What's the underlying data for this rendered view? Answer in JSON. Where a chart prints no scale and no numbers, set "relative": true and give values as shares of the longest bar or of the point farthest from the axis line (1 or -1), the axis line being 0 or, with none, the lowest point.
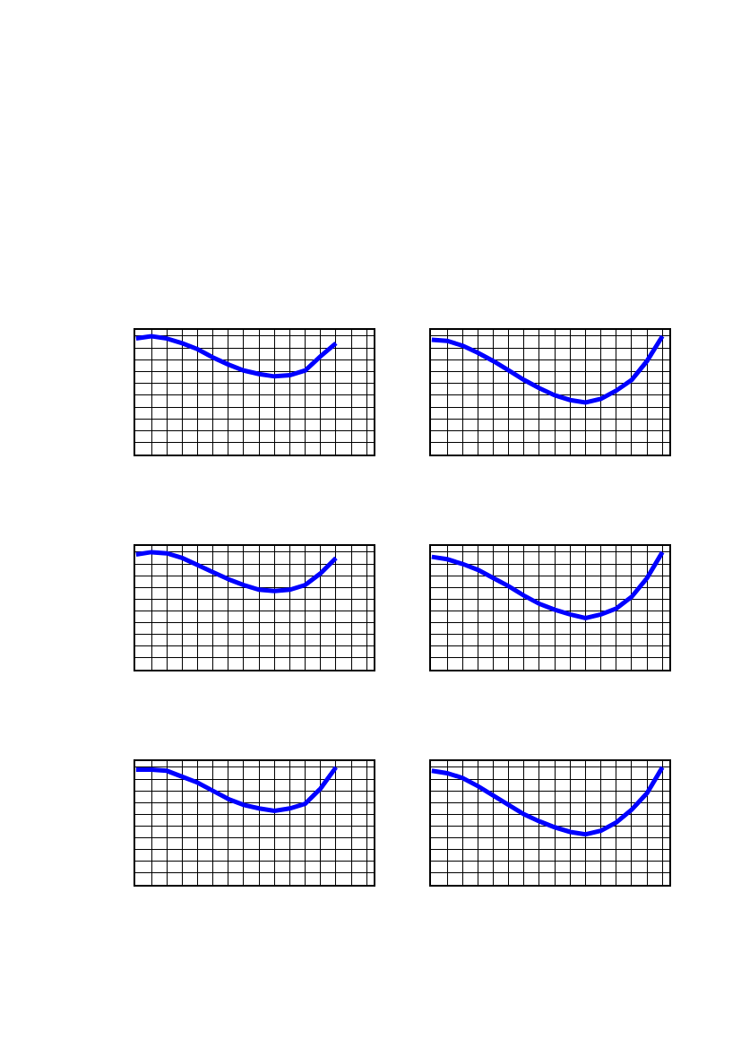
{
  "chart_data": [
    {
      "type": "line",
      "relative": true,
      "grid": true,
      "tick_labels": false,
      "legend": false,
      "marker": "none",
      "line_style": "solid",
      "categories": [
        null,
        null,
        null,
        null,
        null,
        null,
        null,
        null,
        null,
        null,
        null,
        null,
        null,
        null,
        null,
        null
      ],
      "series": [
        {
          "color": "#0000ff",
          "values": [
            0.98,
            1,
            0.98,
            0.94,
            0.89,
            0.82,
            0.76,
            0.71,
            0.68,
            0.66,
            0.67,
            0.71,
            0.83,
            0.94,
            null,
            null
          ]
        }
      ]
    },
    {
      "type": "line",
      "relative": true,
      "grid": true,
      "tick_labels": false,
      "legend": false,
      "marker": "none",
      "line_style": "solid",
      "categories": [
        null,
        null,
        null,
        null,
        null,
        null,
        null,
        null,
        null,
        null,
        null,
        null,
        null,
        null,
        null,
        null
      ],
      "series": [
        {
          "color": "#0000ff",
          "values": [
            0.97,
            0.96,
            0.92,
            0.86,
            0.79,
            0.71,
            0.63,
            0.56,
            0.5,
            0.46,
            0.44,
            0.47,
            0.54,
            0.63,
            0.79,
            1
          ]
        }
      ]
    },
    {
      "type": "line",
      "relative": true,
      "grid": true,
      "tick_labels": false,
      "legend": false,
      "marker": "none",
      "line_style": "solid",
      "categories": [
        null,
        null,
        null,
        null,
        null,
        null,
        null,
        null,
        null,
        null,
        null,
        null,
        null,
        null,
        null,
        null
      ],
      "series": [
        {
          "color": "#0000ff",
          "values": [
            0.98,
            1,
            0.99,
            0.95,
            0.89,
            0.83,
            0.77,
            0.72,
            0.68,
            0.67,
            0.68,
            0.72,
            0.82,
            0.95,
            null,
            null
          ]
        }
      ]
    },
    {
      "type": "line",
      "relative": true,
      "grid": true,
      "tick_labels": false,
      "legend": false,
      "marker": "none",
      "line_style": "solid",
      "categories": [
        null,
        null,
        null,
        null,
        null,
        null,
        null,
        null,
        null,
        null,
        null,
        null,
        null,
        null,
        null,
        null
      ],
      "series": [
        {
          "color": "#0000ff",
          "values": [
            0.96,
            0.94,
            0.9,
            0.85,
            0.78,
            0.71,
            0.63,
            0.56,
            0.51,
            0.47,
            0.44,
            0.47,
            0.52,
            0.62,
            0.78,
            1
          ]
        }
      ]
    },
    {
      "type": "line",
      "relative": true,
      "grid": true,
      "tick_labels": false,
      "legend": false,
      "marker": "none",
      "line_style": "solid",
      "categories": [
        null,
        null,
        null,
        null,
        null,
        null,
        null,
        null,
        null,
        null,
        null,
        null,
        null,
        null,
        null,
        null
      ],
      "series": [
        {
          "color": "#0000ff",
          "values": [
            0.98,
            0.98,
            0.97,
            0.92,
            0.87,
            0.8,
            0.73,
            0.68,
            0.65,
            0.63,
            0.65,
            0.69,
            0.82,
            1,
            null,
            null
          ]
        }
      ]
    },
    {
      "type": "line",
      "relative": true,
      "grid": true,
      "tick_labels": false,
      "legend": false,
      "marker": "none",
      "line_style": "solid",
      "categories": [
        null,
        null,
        null,
        null,
        null,
        null,
        null,
        null,
        null,
        null,
        null,
        null,
        null,
        null,
        null,
        null
      ],
      "series": [
        {
          "color": "#0000ff",
          "values": [
            0.97,
            0.95,
            0.91,
            0.84,
            0.76,
            0.68,
            0.6,
            0.54,
            0.49,
            0.45,
            0.43,
            0.46,
            0.53,
            0.64,
            0.78,
            1
          ]
        }
      ]
    }
  ]
}
